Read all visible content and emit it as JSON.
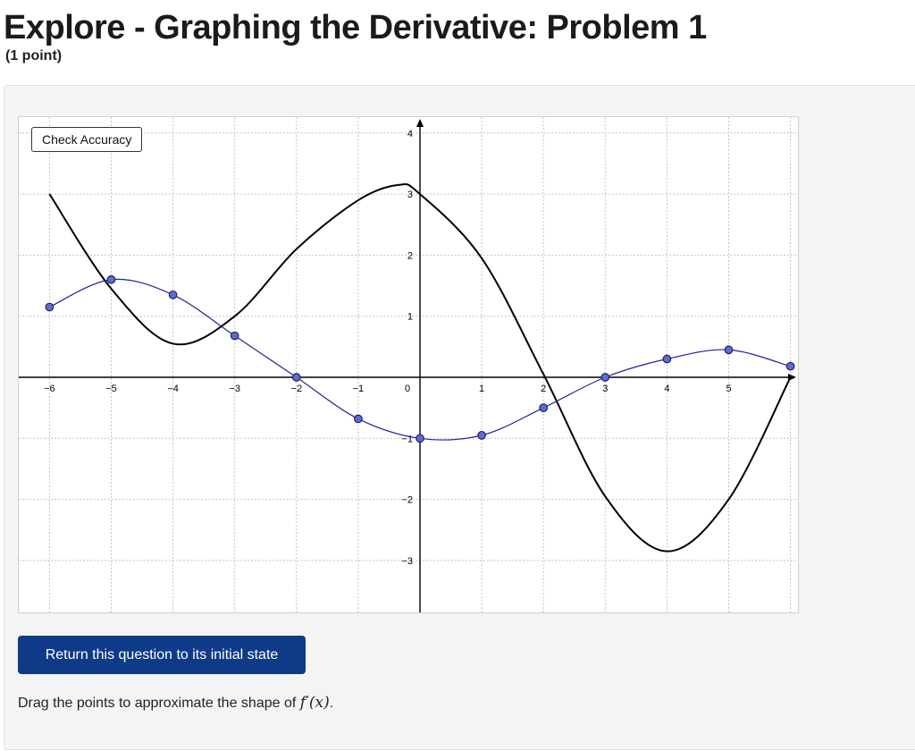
{
  "page": {
    "title": "Explore - Graphing the Derivative: Problem 1",
    "points": "(1 point)"
  },
  "graph": {
    "check_button_label": "Check Accuracy",
    "x_tick_labels": [
      "−6",
      "−5",
      "−4",
      "−3",
      "−2",
      "−1",
      "0",
      "1",
      "2",
      "3",
      "4",
      "5"
    ],
    "y_tick_labels": [
      "4",
      "3",
      "2",
      "1",
      "−1",
      "−2",
      "−3"
    ],
    "colors": {
      "function_curve": "#000000",
      "derivative_curve": "#22229a",
      "point_fill": "#5b6bd6",
      "grid": "#c4c4c4"
    }
  },
  "chart_data": {
    "type": "line",
    "xlim": [
      -6.2,
      6.0
    ],
    "ylim": [
      -3.8,
      4.2
    ],
    "grid": true,
    "series": [
      {
        "role": "f(x)",
        "x": [
          -6.0,
          -5.0,
          -4.0,
          -3.0,
          -2.0,
          -1.0,
          -0.35,
          0.0,
          1.0,
          2.0,
          3.0,
          4.0,
          5.0,
          6.0
        ],
        "y": [
          3.0,
          1.45,
          0.55,
          1.0,
          2.1,
          2.9,
          3.15,
          3.0,
          1.95,
          0.05,
          -1.95,
          -2.85,
          -2.0,
          0.0
        ]
      },
      {
        "role": "draggable points",
        "x": [
          -6.0,
          -5.0,
          -4.0,
          -3.0,
          -2.0,
          -1.0,
          0.0,
          1.0,
          2.0,
          3.0,
          4.0,
          5.0,
          6.0
        ],
        "y": [
          1.15,
          1.6,
          1.35,
          0.68,
          0.0,
          -0.68,
          -1.0,
          -0.95,
          -0.5,
          0.0,
          0.3,
          0.45,
          0.18
        ]
      }
    ]
  },
  "controls": {
    "reset_label": "Return this question to its initial state"
  },
  "instructions": {
    "prefix": "Drag the points to approximate the shape of ",
    "math": "f′(x)",
    "suffix": "."
  }
}
